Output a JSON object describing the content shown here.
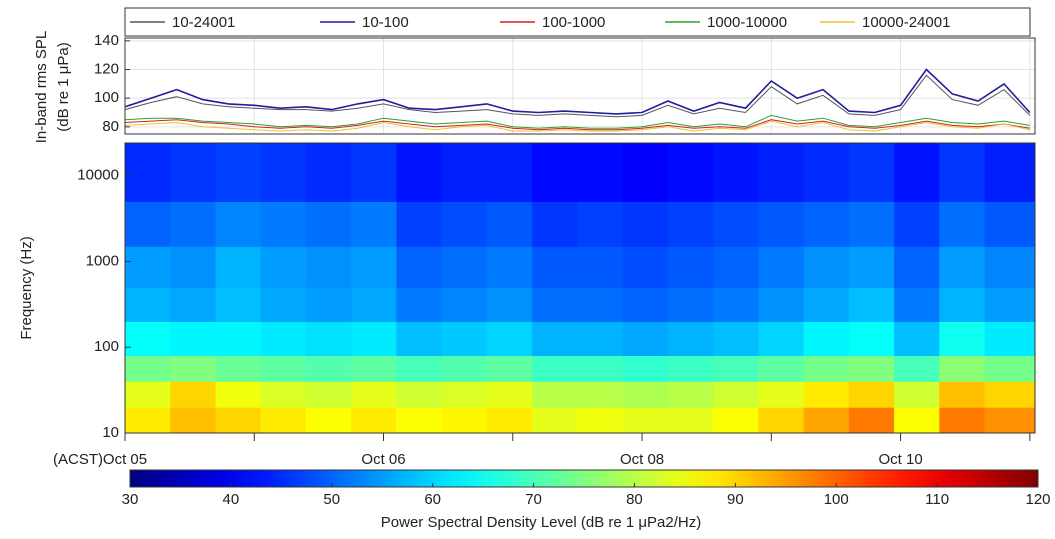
{
  "chart_data": [
    {
      "type": "line",
      "ylabel": [
        "In-band rms SPL",
        "(dB re 1 μPa)"
      ],
      "xlim": [
        0,
        7.04
      ],
      "ylim": [
        75,
        142
      ],
      "yticks": [
        80,
        100,
        120,
        140
      ],
      "grid": true,
      "x": [
        0,
        0.2,
        0.4,
        0.6,
        0.8,
        1.0,
        1.2,
        1.4,
        1.6,
        1.8,
        2.0,
        2.2,
        2.4,
        2.6,
        2.8,
        3.0,
        3.2,
        3.4,
        3.6,
        3.8,
        4.0,
        4.2,
        4.4,
        4.6,
        4.8,
        5.0,
        5.2,
        5.4,
        5.6,
        5.8,
        6.0,
        6.2,
        6.4,
        6.6,
        6.8,
        7.0
      ],
      "series": [
        {
          "name": "10-24001",
          "color": "#555555",
          "values": [
            92,
            97,
            101,
            96,
            94,
            93,
            92,
            92,
            91,
            93,
            96,
            92,
            90,
            91,
            92,
            89,
            88,
            89,
            88,
            87,
            88,
            95,
            89,
            93,
            90,
            108,
            96,
            102,
            89,
            88,
            92,
            116,
            99,
            95,
            106,
            88
          ]
        },
        {
          "name": "10-100",
          "color": "#1f1f9e",
          "values": [
            94,
            100,
            106,
            99,
            96,
            95,
            93,
            94,
            92,
            96,
            99,
            93,
            92,
            94,
            96,
            91,
            90,
            91,
            90,
            89,
            90,
            98,
            91,
            97,
            93,
            112,
            100,
            106,
            91,
            90,
            95,
            120,
            103,
            98,
            110,
            90
          ]
        },
        {
          "name": "100-1000",
          "color": "#d62020",
          "values": [
            83,
            84,
            85,
            83,
            82,
            80,
            79,
            80,
            79,
            81,
            84,
            82,
            80,
            81,
            82,
            79,
            78,
            79,
            78,
            78,
            79,
            81,
            79,
            80,
            79,
            85,
            82,
            84,
            80,
            79,
            81,
            84,
            81,
            80,
            82,
            79
          ]
        },
        {
          "name": "1000-10000",
          "color": "#2ca02c",
          "values": [
            85,
            86,
            86,
            84,
            83,
            82,
            80,
            81,
            80,
            82,
            86,
            84,
            82,
            83,
            84,
            80,
            79,
            80,
            79,
            79,
            80,
            83,
            80,
            82,
            80,
            88,
            84,
            86,
            81,
            80,
            83,
            86,
            83,
            82,
            84,
            81
          ]
        },
        {
          "name": "10000-24001",
          "color": "#f0c030",
          "values": [
            81,
            82,
            83,
            80,
            79,
            78,
            77,
            78,
            77,
            79,
            83,
            80,
            78,
            80,
            81,
            77,
            77,
            78,
            77,
            77,
            78,
            80,
            77,
            79,
            78,
            84,
            80,
            83,
            78,
            77,
            80,
            83,
            80,
            79,
            82,
            78
          ]
        }
      ]
    },
    {
      "type": "heatmap",
      "ylabel": "Frequency (Hz)",
      "timezone": "(ACST)",
      "xlim": [
        0,
        7.04
      ],
      "xticks": [
        {
          "value": 0,
          "label": "Oct 05"
        },
        {
          "value": 1,
          "label": null
        },
        {
          "value": 2,
          "label": "Oct 06"
        },
        {
          "value": 3,
          "label": null
        },
        {
          "value": 4,
          "label": "Oct 08"
        },
        {
          "value": 5,
          "label": null
        },
        {
          "value": 6,
          "label": "Oct 10"
        },
        {
          "value": 7,
          "label": null
        }
      ],
      "ylim": [
        10,
        24001
      ],
      "log_y": true,
      "yticks": [
        10,
        100,
        1000,
        10000
      ],
      "x_bins": [
        0,
        0.35,
        0.7,
        1.05,
        1.4,
        1.75,
        2.1,
        2.45,
        2.8,
        3.15,
        3.5,
        3.85,
        4.2,
        4.55,
        4.9,
        5.25,
        5.6,
        5.95,
        6.3,
        6.65,
        7.04
      ],
      "y_bins": [
        10,
        20,
        40,
        80,
        200,
        500,
        1500,
        5000,
        24001
      ],
      "values": [
        [
          88,
          92,
          90,
          88,
          86,
          88,
          86,
          87,
          88,
          84,
          85,
          84,
          84,
          86,
          90,
          94,
          98,
          86,
          98,
          96
        ],
        [
          84,
          90,
          85,
          83,
          82,
          84,
          82,
          83,
          84,
          80,
          80,
          79,
          80,
          82,
          84,
          88,
          90,
          82,
          92,
          90
        ],
        [
          74,
          75,
          73,
          72,
          71,
          72,
          70,
          71,
          72,
          69,
          69,
          68,
          69,
          70,
          72,
          74,
          75,
          70,
          76,
          74
        ],
        [
          64,
          63,
          63,
          62,
          61,
          62,
          58,
          59,
          60,
          57,
          57,
          56,
          57,
          58,
          60,
          63,
          64,
          58,
          65,
          62
        ],
        [
          57,
          56,
          58,
          56,
          55,
          56,
          52,
          53,
          54,
          51,
          51,
          50,
          51,
          52,
          54,
          56,
          58,
          52,
          57,
          55
        ],
        [
          55,
          54,
          57,
          55,
          54,
          55,
          50,
          51,
          52,
          49,
          49,
          48,
          49,
          50,
          52,
          54,
          55,
          50,
          55,
          53
        ],
        [
          50,
          51,
          53,
          52,
          51,
          52,
          47,
          48,
          49,
          46,
          47,
          46,
          47,
          48,
          49,
          50,
          51,
          47,
          51,
          49
        ],
        [
          45,
          46,
          47,
          46,
          45,
          46,
          43,
          44,
          44,
          42,
          42,
          41,
          42,
          43,
          44,
          45,
          46,
          43,
          46,
          44
        ]
      ],
      "colormap": "jet",
      "clim": [
        30,
        120
      ],
      "cticks": [
        30,
        40,
        50,
        60,
        70,
        80,
        90,
        100,
        110,
        120
      ],
      "clabel": "Power Spectral Density Level (dB re 1 μPa2/Hz)"
    }
  ]
}
